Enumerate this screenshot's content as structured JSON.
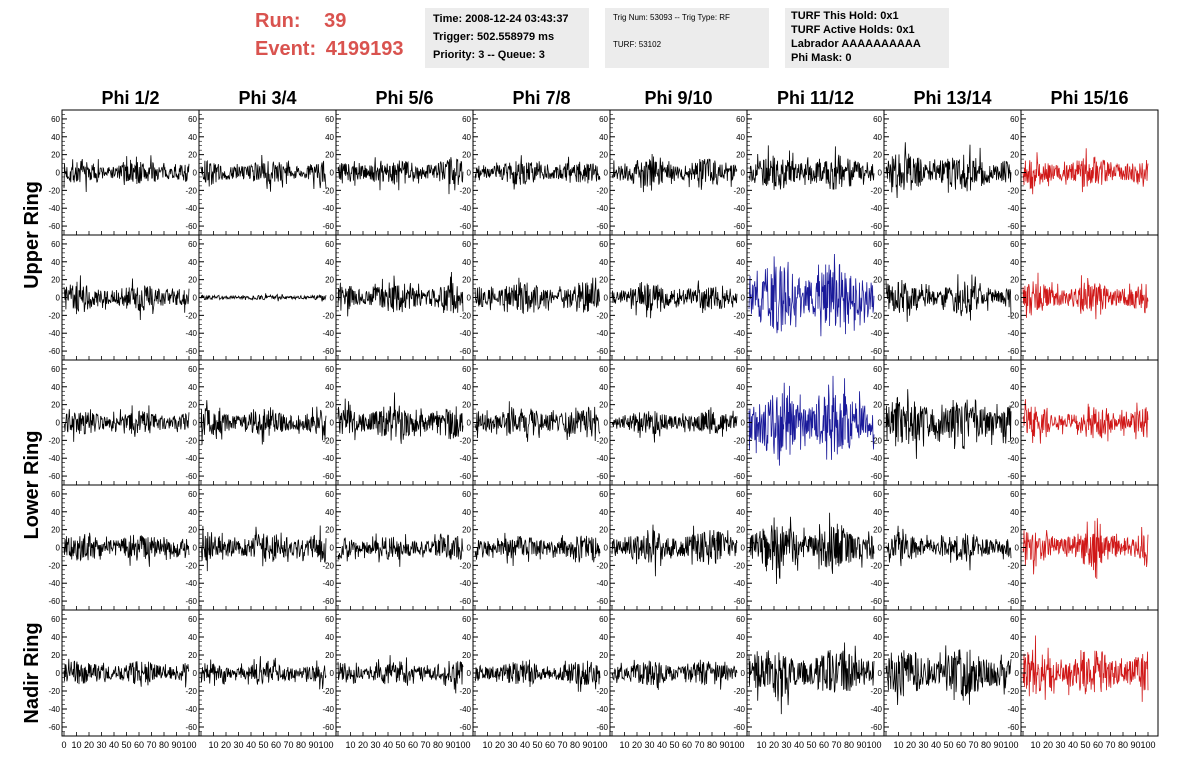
{
  "colors": {
    "accent": "#d9534f",
    "trace_default": "#000000",
    "trace_red": "#d01818",
    "trace_blue": "#1a1a9a",
    "info_bg": "#ececec"
  },
  "header": {
    "run_label": "Run:",
    "run_value": "39",
    "event_label": "Event:",
    "event_value": "4199193",
    "box1": {
      "time": "Time: 2008-12-24 03:43:37",
      "trigger": "Trigger: 502.558979 ms",
      "priority": "Priority: 3 -- Queue: 3"
    },
    "box2": {
      "trig": "Trig Num: 53093 -- Trig Type: RF",
      "turf": "TURF: 53102"
    },
    "box3": {
      "hold": "TURF This Hold: 0x1",
      "active": "TURF Active Holds: 0x1",
      "labrador": "Labrador AAAAAAAAAA",
      "phi_mask": "Phi Mask: 0"
    }
  },
  "chart_data": {
    "type": "line",
    "layout": "grid-5x8",
    "column_titles": [
      "Phi 1/2",
      "Phi 3/4",
      "Phi 5/6",
      "Phi 7/8",
      "Phi 9/10",
      "Phi 11/12",
      "Phi 13/14",
      "Phi 15/16"
    ],
    "ring_labels": [
      {
        "label": "Upper Ring",
        "rows": [
          0,
          1
        ]
      },
      {
        "label": "Lower Ring",
        "rows": [
          2,
          3
        ]
      },
      {
        "label": "Nadir Ring",
        "rows": [
          4
        ]
      }
    ],
    "x_ticks": [
      "0",
      "10",
      "20",
      "30",
      "40",
      "50",
      "60",
      "70",
      "80",
      "90",
      "100"
    ],
    "xlim": [
      0,
      100
    ],
    "y_ticks": [
      60,
      40,
      20,
      0,
      -20,
      -40,
      -60
    ],
    "ylim": [
      -70,
      70
    ],
    "panel_amplitude": [
      [
        14,
        14,
        16,
        14,
        16,
        20,
        22,
        18
      ],
      [
        16,
        3,
        18,
        18,
        16,
        40,
        18,
        18
      ],
      [
        14,
        16,
        20,
        18,
        14,
        36,
        30,
        18
      ],
      [
        16,
        18,
        14,
        14,
        20,
        26,
        16,
        22
      ],
      [
        14,
        12,
        14,
        14,
        14,
        28,
        28,
        26
      ]
    ],
    "panel_color": [
      [
        "default",
        "default",
        "default",
        "default",
        "default",
        "default",
        "default",
        "red"
      ],
      [
        "default",
        "default",
        "default",
        "default",
        "default",
        "blue",
        "default",
        "red"
      ],
      [
        "default",
        "default",
        "default",
        "default",
        "default",
        "blue",
        "default",
        "red"
      ],
      [
        "default",
        "default",
        "default",
        "default",
        "default",
        "default",
        "default",
        "red"
      ],
      [
        "default",
        "default",
        "default",
        "default",
        "default",
        "default",
        "default",
        "red"
      ]
    ]
  }
}
